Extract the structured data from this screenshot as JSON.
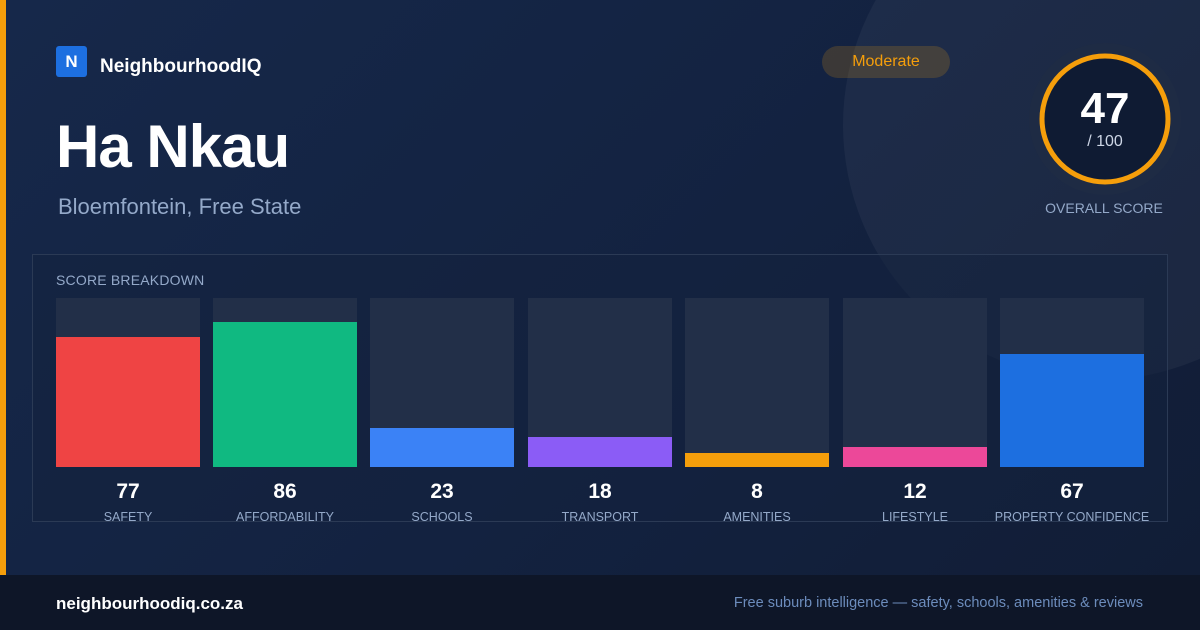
{
  "brand": {
    "logo_letter": "N",
    "name": "NeighbourhoodIQ"
  },
  "suburb": {
    "name": "Ha Nkau",
    "location": "Bloemfontein, Free State"
  },
  "rating": {
    "label": "Moderate",
    "color": "#f59e0b"
  },
  "overall": {
    "score": "47",
    "denominator": "/ 100",
    "value": 47,
    "max": 100,
    "label": "OVERALL SCORE"
  },
  "breakdown": {
    "title": "SCORE BREAKDOWN",
    "items": [
      {
        "label": "SAFETY",
        "value": "77",
        "score": 77,
        "color": "#ef4444"
      },
      {
        "label": "AFFORDABILITY",
        "value": "86",
        "score": 86,
        "color": "#10b981"
      },
      {
        "label": "SCHOOLS",
        "value": "23",
        "score": 23,
        "color": "#3b82f6"
      },
      {
        "label": "TRANSPORT",
        "value": "18",
        "score": 18,
        "color": "#8b5cf6"
      },
      {
        "label": "AMENITIES",
        "value": "8",
        "score": 8,
        "color": "#f59e0b"
      },
      {
        "label": "LIFESTYLE",
        "value": "12",
        "score": 12,
        "color": "#ec4899"
      },
      {
        "label": "PROPERTY CONFIDENCE",
        "value": "67",
        "score": 67,
        "color": "#1d6fe0"
      }
    ]
  },
  "footer": {
    "url": "neighbourhoodiq.co.za",
    "tagline": "Free suburb intelligence — safety, schools, amenities & reviews"
  }
}
